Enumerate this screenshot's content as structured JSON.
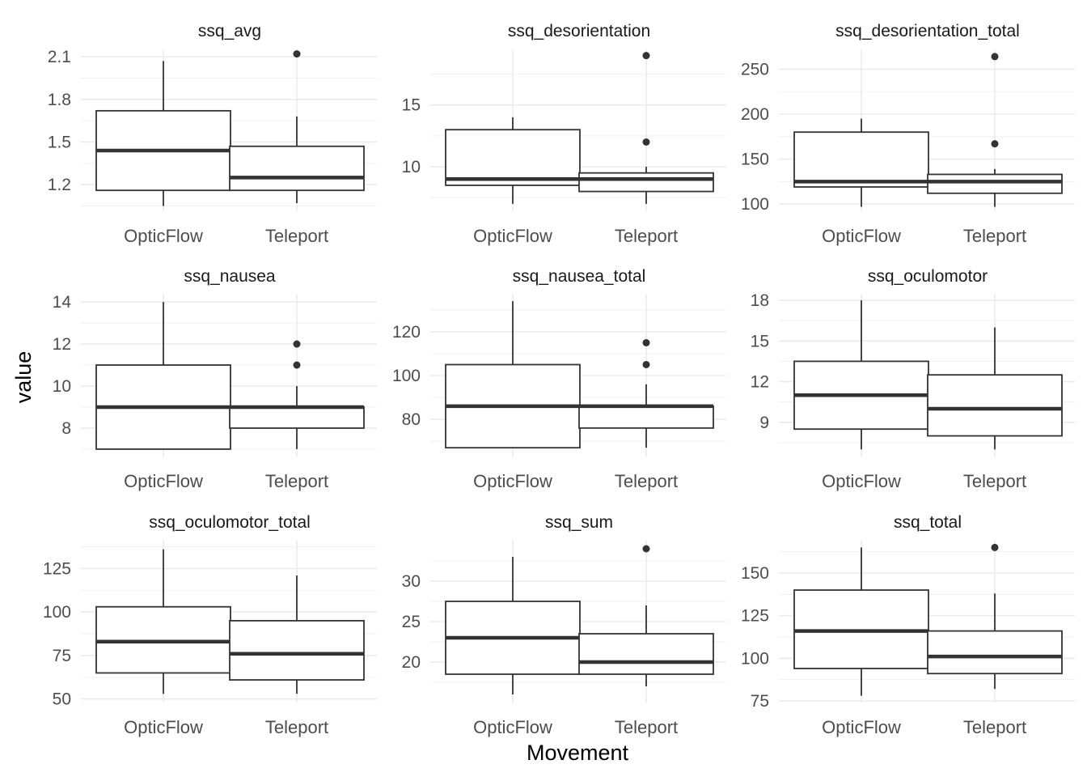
{
  "chart_data": {
    "type": "box",
    "layout": "facet-grid-3x3",
    "xlabel": "Movement",
    "ylabel": "value",
    "categories": [
      "OpticFlow",
      "Teleport"
    ],
    "grid": true,
    "panels": [
      {
        "title": "ssq_avg",
        "ylim": [
          1.013,
          2.152
        ],
        "yticks": [
          1.2,
          1.5,
          1.8,
          2.1
        ],
        "ytick_labels": [
          "1.2",
          "1.5",
          "1.8",
          "2.1"
        ],
        "boxes": [
          {
            "category": "OpticFlow",
            "lower": 1.05,
            "q1": 1.16,
            "median": 1.44,
            "q3": 1.72,
            "upper": 2.07,
            "outliers": []
          },
          {
            "category": "Teleport",
            "lower": 1.07,
            "q1": 1.16,
            "median": 1.25,
            "q3": 1.47,
            "upper": 1.68,
            "outliers": [
              2.12
            ]
          }
        ]
      },
      {
        "title": "ssq_desorientation",
        "ylim": [
          6.4,
          19.5
        ],
        "yticks": [
          10,
          15
        ],
        "ytick_labels": [
          "10",
          "15"
        ],
        "boxes": [
          {
            "category": "OpticFlow",
            "lower": 7,
            "q1": 8.5,
            "median": 9,
            "q3": 13,
            "upper": 14,
            "outliers": []
          },
          {
            "category": "Teleport",
            "lower": 7,
            "q1": 8,
            "median": 9,
            "q3": 9.5,
            "upper": 10,
            "outliers": [
              12,
              19
            ]
          }
        ]
      },
      {
        "title": "ssq_desorientation_total",
        "ylim": [
          92,
          272
        ],
        "yticks": [
          100,
          150,
          200,
          250
        ],
        "ytick_labels": [
          "100",
          "150",
          "200",
          "250"
        ],
        "boxes": [
          {
            "category": "OpticFlow",
            "lower": 97,
            "q1": 119,
            "median": 125,
            "q3": 180,
            "upper": 195,
            "outliers": []
          },
          {
            "category": "Teleport",
            "lower": 97,
            "q1": 112,
            "median": 125,
            "q3": 133,
            "upper": 139,
            "outliers": [
              167,
              264
            ]
          }
        ]
      },
      {
        "title": "ssq_nausea",
        "ylim": [
          6.65,
          14.35
        ],
        "yticks": [
          8,
          10,
          12,
          14
        ],
        "ytick_labels": [
          "8",
          "10",
          "12",
          "14"
        ],
        "boxes": [
          {
            "category": "OpticFlow",
            "lower": 7,
            "q1": 7,
            "median": 9,
            "q3": 11,
            "upper": 14,
            "outliers": []
          },
          {
            "category": "Teleport",
            "lower": 7,
            "q1": 8,
            "median": 9,
            "q3": 9,
            "upper": 10,
            "outliers": [
              11,
              12
            ]
          }
        ]
      },
      {
        "title": "ssq_nausea_total",
        "ylim": [
          63,
          137
        ],
        "yticks": [
          80,
          100,
          120
        ],
        "ytick_labels": [
          "80",
          "100",
          "120"
        ],
        "boxes": [
          {
            "category": "OpticFlow",
            "lower": 67,
            "q1": 67,
            "median": 86,
            "q3": 105,
            "upper": 134,
            "outliers": []
          },
          {
            "category": "Teleport",
            "lower": 67,
            "q1": 76,
            "median": 86,
            "q3": 86,
            "upper": 96,
            "outliers": [
              105,
              115
            ]
          }
        ]
      },
      {
        "title": "ssq_oculomotor",
        "ylim": [
          6.48,
          18.42
        ],
        "yticks": [
          9,
          12,
          15,
          18
        ],
        "ytick_labels": [
          "9",
          "12",
          "15",
          "18"
        ],
        "boxes": [
          {
            "category": "OpticFlow",
            "lower": 7,
            "q1": 8.5,
            "median": 11,
            "q3": 13.5,
            "upper": 18,
            "outliers": []
          },
          {
            "category": "Teleport",
            "lower": 7,
            "q1": 8,
            "median": 10,
            "q3": 12.5,
            "upper": 16,
            "outliers": []
          }
        ]
      },
      {
        "title": "ssq_oculomotor_total",
        "ylim": [
          48,
          141
        ],
        "yticks": [
          50,
          75,
          100,
          125
        ],
        "ytick_labels": [
          "50",
          "75",
          "100",
          "125"
        ],
        "boxes": [
          {
            "category": "OpticFlow",
            "lower": 53,
            "q1": 65,
            "median": 83,
            "q3": 103,
            "upper": 136,
            "outliers": []
          },
          {
            "category": "Teleport",
            "lower": 53,
            "q1": 61,
            "median": 76,
            "q3": 95,
            "upper": 121,
            "outliers": []
          }
        ]
      },
      {
        "title": "ssq_sum",
        "ylim": [
          15,
          35
        ],
        "yticks": [
          20,
          25,
          30
        ],
        "ytick_labels": [
          "20",
          "25",
          "30"
        ],
        "boxes": [
          {
            "category": "OpticFlow",
            "lower": 16,
            "q1": 18.5,
            "median": 23,
            "q3": 27.5,
            "upper": 33,
            "outliers": []
          },
          {
            "category": "Teleport",
            "lower": 17,
            "q1": 18.5,
            "median": 20,
            "q3": 23.5,
            "upper": 27,
            "outliers": [
              34
            ]
          }
        ]
      },
      {
        "title": "ssq_total",
        "ylim": [
          74,
          169
        ],
        "yticks": [
          75,
          100,
          125,
          150
        ],
        "ytick_labels": [
          "75",
          "100",
          "125",
          "150"
        ],
        "boxes": [
          {
            "category": "OpticFlow",
            "lower": 78,
            "q1": 94,
            "median": 116,
            "q3": 140,
            "upper": 165,
            "outliers": []
          },
          {
            "category": "Teleport",
            "lower": 82,
            "q1": 91,
            "median": 101,
            "q3": 116,
            "upper": 138,
            "outliers": [
              165
            ]
          }
        ]
      }
    ]
  }
}
